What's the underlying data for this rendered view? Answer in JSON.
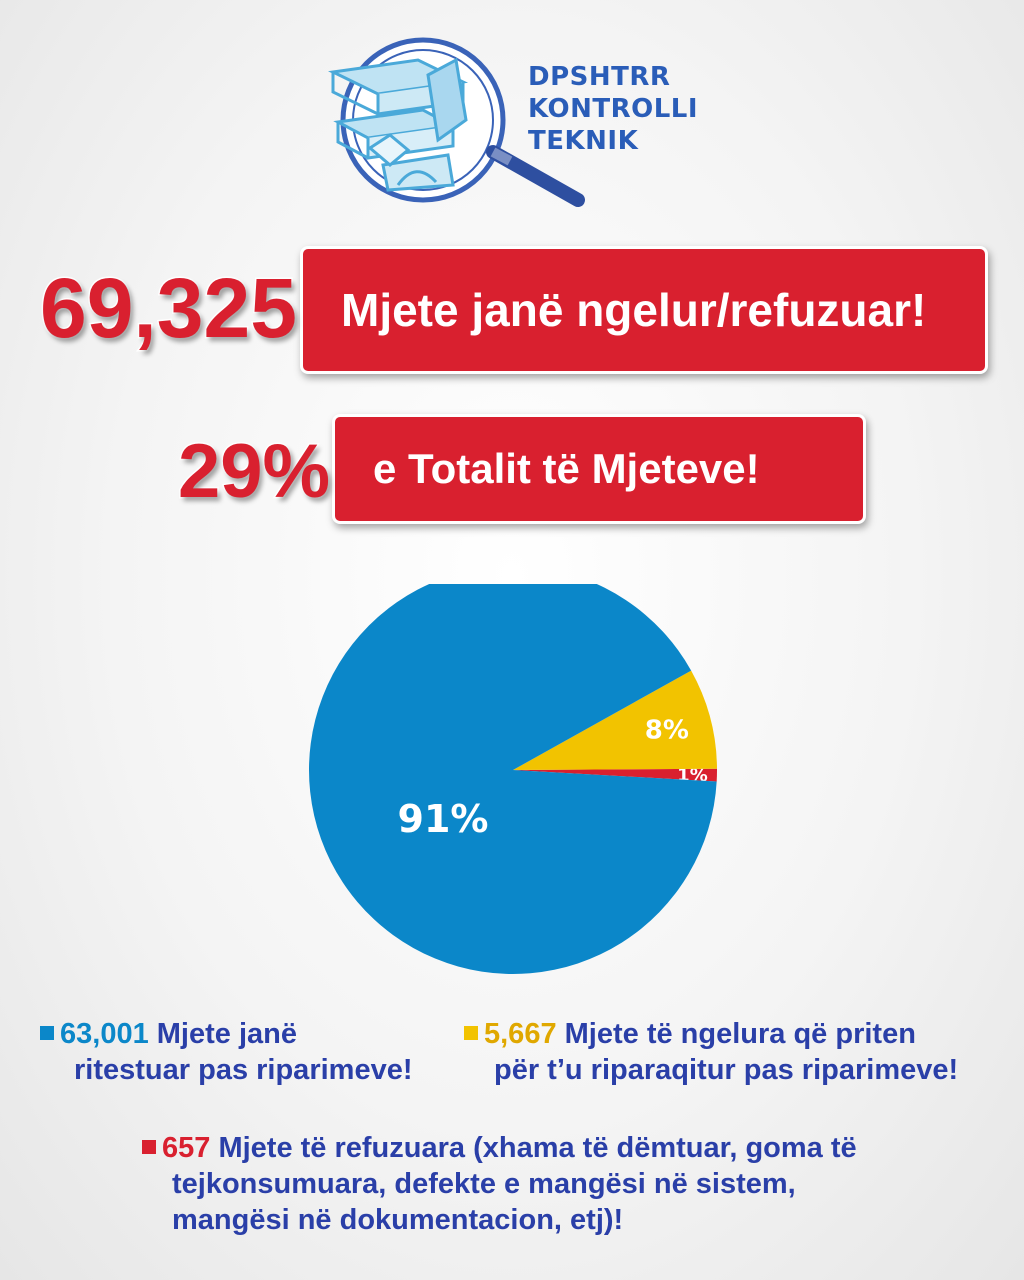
{
  "logo": {
    "line1": "DPSHTRR",
    "line2": "KONTROLLI",
    "line3": "TEKNIK"
  },
  "banner1": {
    "number": "69,325",
    "text": "Mjete janë ngelur/refuzuar!"
  },
  "banner2": {
    "number": "29%",
    "text": "e Totalit të Mjeteve!"
  },
  "colors": {
    "blue": "#0b87c9",
    "yellow": "#f2c300",
    "red": "#d9202f",
    "legend_text": "#2a3fa8"
  },
  "chart_data": {
    "type": "pie",
    "slices": [
      {
        "value": 91,
        "label": "91%",
        "color": "#0b87c9"
      },
      {
        "value": 8,
        "label": "8%",
        "color": "#f2c300"
      },
      {
        "value": 1,
        "label": "1%",
        "color": "#d9202f"
      }
    ]
  },
  "legend": {
    "blue": {
      "value": "63,001",
      "line1": " Mjete janë",
      "line2": "ritestuar pas riparimeve!"
    },
    "yellow": {
      "value": "5,667",
      "line1": " Mjete të ngelura që priten",
      "line2": "për t’u riparaqitur pas riparimeve!"
    },
    "red": {
      "value": "657",
      "line1": " Mjete të refuzuara (xhama të dëmtuar, goma të",
      "line2": "tejkonsumuara, defekte e mangësi në sistem,",
      "line3": "mangësi në dokumentacion, etj)!"
    }
  }
}
